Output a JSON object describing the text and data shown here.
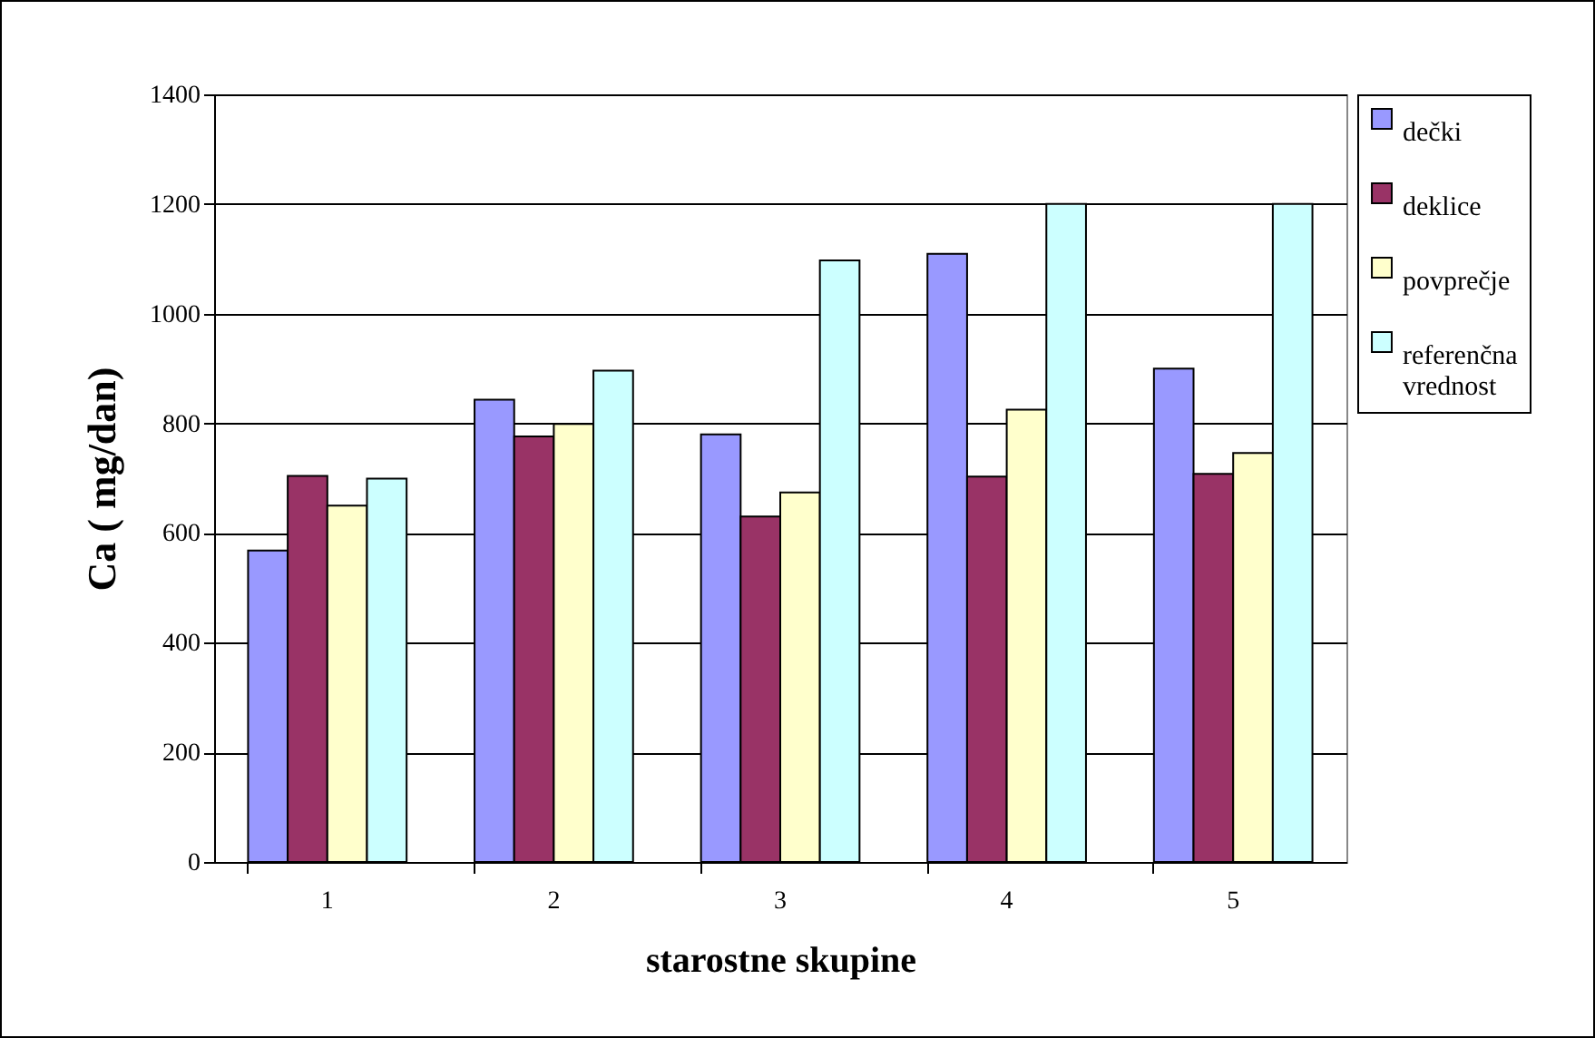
{
  "chart_data": {
    "type": "bar",
    "xlabel": "starostne skupine",
    "ylabel": "Ca ( mg/dan)",
    "categories": [
      "1",
      "2",
      "3",
      "4",
      "5"
    ],
    "series": [
      {
        "name": "dečki",
        "color": "#9999ff",
        "values": [
          568,
          843,
          780,
          1109,
          900
        ]
      },
      {
        "name": "deklice",
        "color": "#993366",
        "values": [
          704,
          776,
          630,
          703,
          708
        ]
      },
      {
        "name": "povprečje",
        "color": "#ffffcc",
        "values": [
          650,
          799,
          674,
          825,
          746
        ]
      },
      {
        "name": "referenčna vrednost",
        "color": "#ccffff",
        "values": [
          699,
          896,
          1097,
          1200,
          1200
        ]
      }
    ],
    "ylim": [
      0,
      1400
    ],
    "yticks": [
      0,
      200,
      400,
      600,
      800,
      1000,
      1200,
      1400
    ],
    "grid": "y",
    "legend": "right"
  }
}
